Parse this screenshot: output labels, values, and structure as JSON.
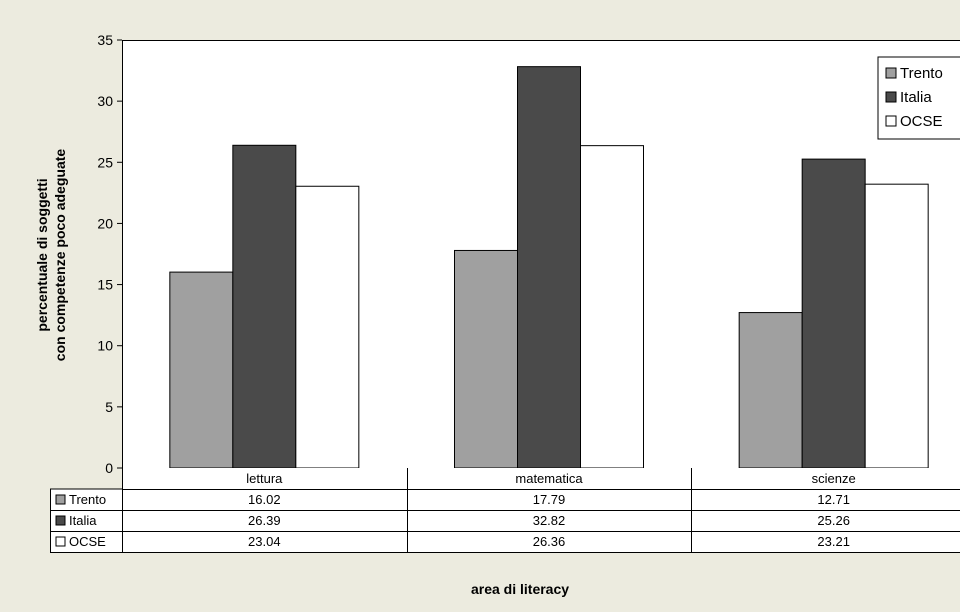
{
  "chart_data": {
    "type": "bar",
    "categories": [
      "lettura",
      "matematica",
      "scienze"
    ],
    "series": [
      {
        "name": "Trento",
        "values": [
          16.02,
          17.79,
          12.71
        ],
        "color": "#a0a0a0"
      },
      {
        "name": "Italia",
        "values": [
          26.39,
          32.82,
          25.26
        ],
        "color": "#4a4a4a"
      },
      {
        "name": "OCSE",
        "values": [
          23.04,
          26.36,
          23.21
        ],
        "color": "#ffffff"
      }
    ],
    "table_values": [
      [
        "16.02",
        "17.79",
        "12.71"
      ],
      [
        "26.39",
        "32.82",
        "25.26"
      ],
      [
        "23.04",
        "26.36",
        "23.21"
      ]
    ],
    "yticks": [
      "0",
      "5",
      "10",
      "15",
      "20",
      "25",
      "30",
      "35"
    ],
    "ylim": [
      0,
      35
    ],
    "ylabel_line1": "percentuale di soggetti",
    "ylabel_line2": "con competenze poco adeguate",
    "xlabel": "area di literacy",
    "legend_position": "top-right",
    "plot_background": "#ffffff",
    "page_background": "#ecebdf"
  }
}
